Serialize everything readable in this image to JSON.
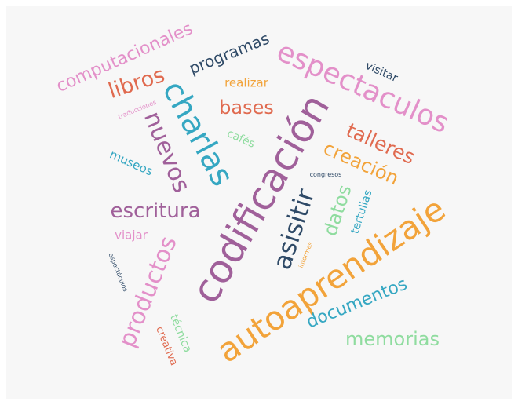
{
  "colors": {
    "pink": "#e390c9",
    "orange_red": "#e06a4f",
    "navy": "#2f4a67",
    "gold": "#f2a33a",
    "teal": "#35a7c2",
    "purple": "#a0609a",
    "mint": "#8fdc9f",
    "background": "#f7f7f7"
  },
  "words": {
    "computacionales": "computacionales",
    "libros": "libros",
    "programas": "programas",
    "realizar": "realizar",
    "espectaculos_big": "espectaculos",
    "visitar": "visitar",
    "traducciones": "traducciones",
    "charlas": "charlas",
    "bases": "bases",
    "nuevos": "nuevos",
    "cafes": "cafés",
    "talleres": "talleres",
    "creacion": "creación",
    "museos": "museos",
    "codificacion": "codificación",
    "congresos": "congresos",
    "escritura": "escritura",
    "asisitir": "asisitir",
    "datos": "datos",
    "tertulias": "tertulias",
    "viajar": "viajar",
    "autoaprendizaje": "autoaprendizaje",
    "productos": "productos",
    "espectaculos_small": "espectáculos",
    "informes": "informes",
    "documentos": "documentos",
    "tecnica": "técnica",
    "creativa": "creativa",
    "memorias": "memorias"
  }
}
